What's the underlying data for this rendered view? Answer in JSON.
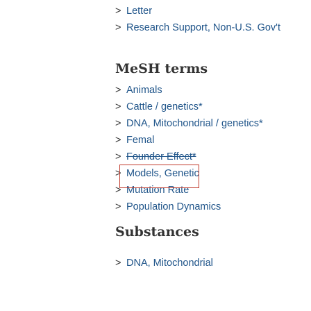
{
  "publication_types": [
    {
      "label": "Letter"
    },
    {
      "label": "Research Support, Non-U.S. Gov't"
    }
  ],
  "mesh": {
    "title": "MeSH terms",
    "items": [
      {
        "label": "Animals"
      },
      {
        "label": "Cattle / genetics*"
      },
      {
        "label": "DNA, Mitochondrial / genetics*"
      },
      {
        "label": "Femal"
      },
      {
        "label": "Founder Effect*"
      },
      {
        "label": "Models, Genetic"
      },
      {
        "label": "Mutation Rate"
      },
      {
        "label": "Population Dynamics"
      }
    ]
  },
  "substances": {
    "title": "Substances",
    "items": [
      {
        "label": "DNA, Mitochondrial"
      }
    ]
  },
  "icons": {
    "chevron": "chevron-right-icon"
  },
  "colors": {
    "link": "#20558a",
    "heading": "#333333",
    "highlight": "#c0392b"
  }
}
